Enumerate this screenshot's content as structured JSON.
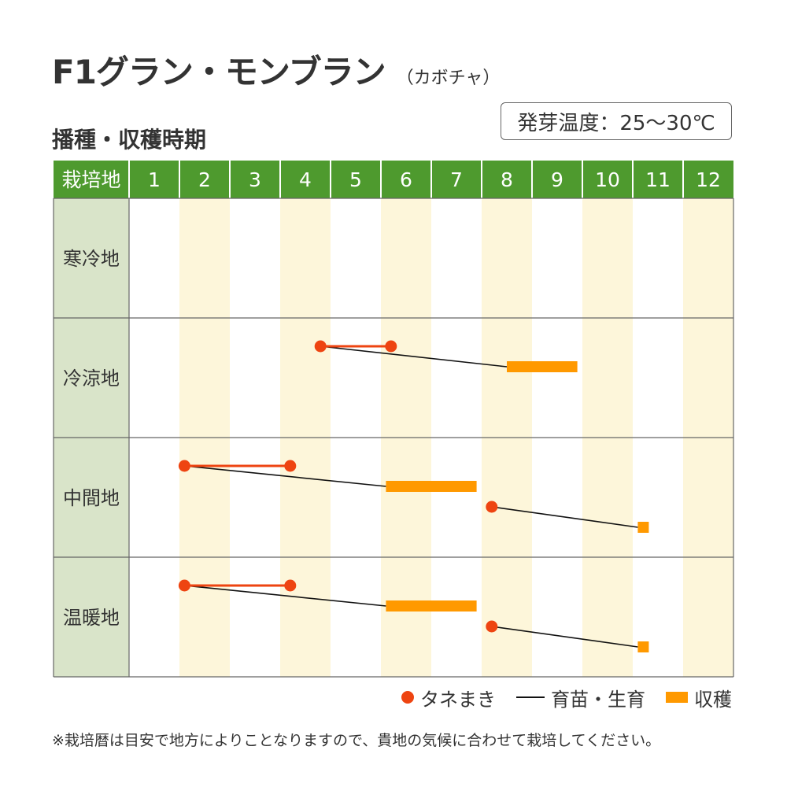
{
  "title": "F1グラン・モンブラン",
  "subtitle": "（カボチャ）",
  "section_title": "播種・収穫時期",
  "germination_temp": "発芽温度：25～30℃",
  "legend": {
    "sowing": "タネまき",
    "growing": "育苗・生育",
    "harvest": "収穫"
  },
  "footnote": "※栽培暦は目安で地方によりことなりますので、貴地の気候に合わせて栽培してください。",
  "colors": {
    "header_green": "#4e9a2e",
    "region_cell": "#d9e4c9",
    "stripe": "#fdf6da",
    "sowing": "#ee4411",
    "growing": "#111111",
    "harvest": "#ff9900"
  },
  "chart_data": {
    "type": "gantt",
    "header_label": "栽培地",
    "months": [
      "1",
      "2",
      "3",
      "4",
      "5",
      "6",
      "7",
      "8",
      "9",
      "10",
      "11",
      "12"
    ],
    "regions": [
      {
        "name": "寒冷地",
        "schedules": []
      },
      {
        "name": "冷涼地",
        "schedules": [
          {
            "sow": [
              4.8,
              6.2
            ],
            "harvest": [
              8.5,
              9.9
            ]
          }
        ]
      },
      {
        "name": "中間地",
        "schedules": [
          {
            "sow": [
              2.1,
              4.2
            ],
            "harvest": [
              6.1,
              7.9
            ]
          },
          {
            "sow": [
              8.2,
              8.2
            ],
            "harvest": [
              11.1,
              11.3
            ]
          }
        ]
      },
      {
        "name": "温暖地",
        "schedules": [
          {
            "sow": [
              2.1,
              4.2
            ],
            "harvest": [
              6.1,
              7.9
            ]
          },
          {
            "sow": [
              8.2,
              8.2
            ],
            "harvest": [
              11.1,
              11.3
            ]
          }
        ]
      }
    ]
  }
}
